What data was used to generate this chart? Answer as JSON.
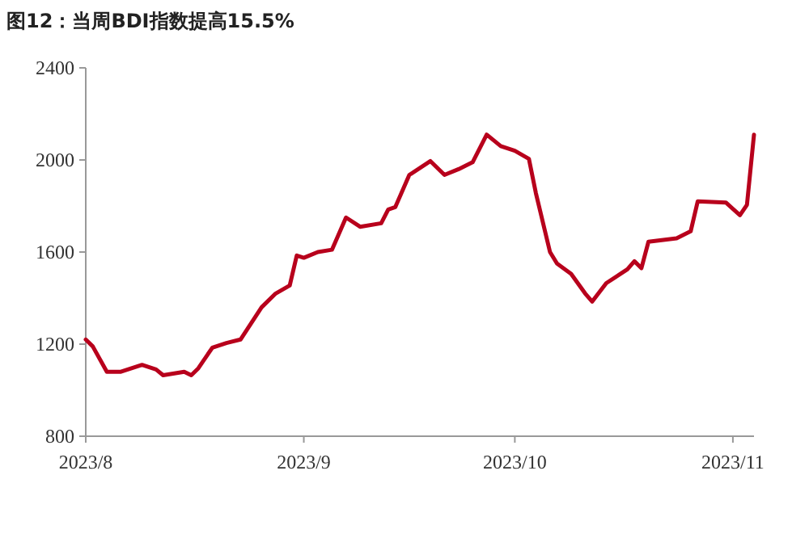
{
  "chart_data": {
    "type": "line",
    "title": "图12：当周BDI指数提高15.5%",
    "x": [
      "2023-08-01",
      "2023-08-02",
      "2023-08-04",
      "2023-08-06",
      "2023-08-09",
      "2023-08-11",
      "2023-08-12",
      "2023-08-15",
      "2023-08-16",
      "2023-08-17",
      "2023-08-19",
      "2023-08-21",
      "2023-08-23",
      "2023-08-26",
      "2023-08-28",
      "2023-08-30",
      "2023-08-31",
      "2023-09-01",
      "2023-09-03",
      "2023-09-05",
      "2023-09-07",
      "2023-09-09",
      "2023-09-12",
      "2023-09-13",
      "2023-09-14",
      "2023-09-16",
      "2023-09-19",
      "2023-09-21",
      "2023-09-23",
      "2023-09-25",
      "2023-09-27",
      "2023-09-29",
      "2023-10-01",
      "2023-10-03",
      "2023-10-04",
      "2023-10-06",
      "2023-10-07",
      "2023-10-09",
      "2023-10-11",
      "2023-10-12",
      "2023-10-14",
      "2023-10-17",
      "2023-10-18",
      "2023-10-19",
      "2023-10-20",
      "2023-10-24",
      "2023-10-26",
      "2023-10-27",
      "2023-10-31",
      "2023-11-02",
      "2023-11-03",
      "2023-11-04"
    ],
    "series": [
      {
        "color": "#b8001c",
        "values": [
          1220,
          1190,
          1080,
          1080,
          1110,
          1090,
          1065,
          1080,
          1065,
          1095,
          1185,
          1205,
          1220,
          1360,
          1420,
          1455,
          1585,
          1575,
          1600,
          1610,
          1750,
          1710,
          1725,
          1785,
          1795,
          1935,
          1995,
          1935,
          1960,
          1990,
          2110,
          2060,
          2040,
          2005,
          1855,
          1600,
          1550,
          1505,
          1420,
          1385,
          1465,
          1525,
          1560,
          1530,
          1645,
          1660,
          1690,
          1820,
          1815,
          1760,
          1805,
          2110
        ]
      }
    ],
    "xlim": [
      "2023-08-01",
      "2023-11-04"
    ],
    "xticks": [
      {
        "value": "2023-08-01",
        "label": "2023/8"
      },
      {
        "value": "2023-09-01",
        "label": "2023/9"
      },
      {
        "value": "2023-10-01",
        "label": "2023/10"
      },
      {
        "value": "2023-11-01",
        "label": "2023/11"
      }
    ],
    "ylim": [
      800,
      2400
    ],
    "yticks": [
      800,
      1200,
      1600,
      2000,
      2400
    ],
    "grid": false,
    "marker": "none",
    "line_style": "solid"
  }
}
